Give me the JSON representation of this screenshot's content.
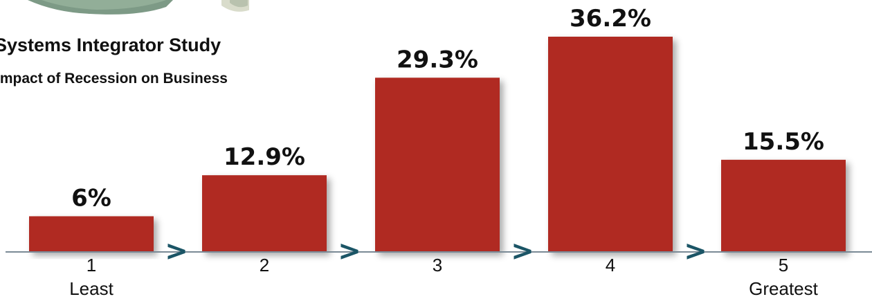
{
  "chart_data": {
    "type": "bar",
    "title": "Systems Integrator Study",
    "subtitle": "Impact of Recession on Business",
    "categories": [
      "1",
      "2",
      "3",
      "4",
      "5"
    ],
    "category_sublabels": [
      "Least",
      "",
      "",
      "",
      "Greatest"
    ],
    "values": [
      6,
      12.9,
      29.3,
      36.2,
      15.5
    ],
    "value_labels": [
      "6%",
      "12.9%",
      "29.3%",
      "36.2%",
      "15.5%"
    ],
    "ylim": [
      0,
      36.2
    ],
    "grid": false,
    "legend": "none",
    "separator_glyph": ">",
    "colors": {
      "bar": "#b02b22",
      "axis": "#7a8a96",
      "arrow": "#1b5566",
      "text": "#111111"
    }
  }
}
